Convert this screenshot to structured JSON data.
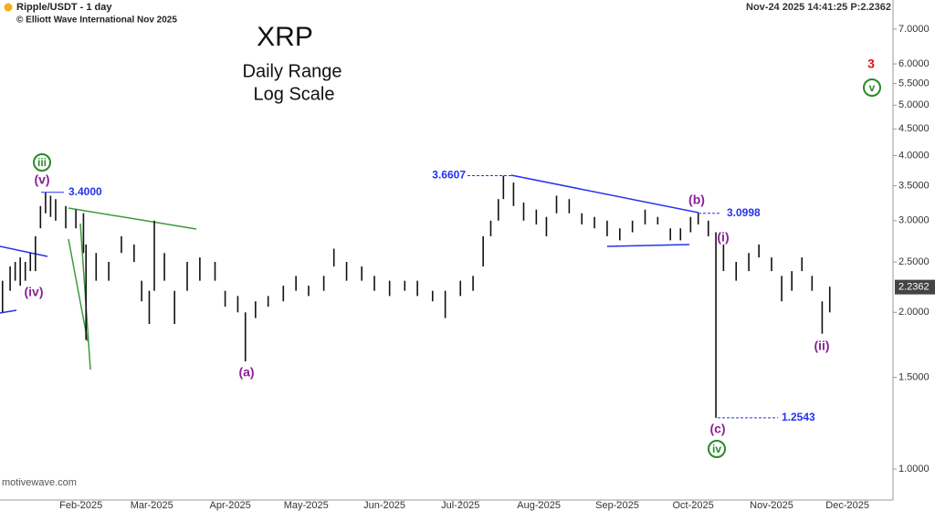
{
  "chart_data": {
    "type": "range_bar",
    "header": "Ripple/USDT - 1 day",
    "copyright": "© Elliott Wave International Nov 2025",
    "status": "Nov-24 2025  14:41:25  P:2.2362",
    "watermark": "motivewave.com",
    "title": "XRP",
    "subtitle": [
      "Daily Range",
      "Log Scale"
    ],
    "log_scale": true,
    "color": "#111111",
    "x": [
      "2025-01-01",
      "2025-01-04",
      "2025-01-06",
      "2025-01-08",
      "2025-01-10",
      "2025-01-12",
      "2025-01-14",
      "2025-01-16",
      "2025-01-18",
      "2025-01-20",
      "2025-01-22",
      "2025-01-26",
      "2025-01-30",
      "2025-02-02",
      "2025-02-03",
      "2025-02-07",
      "2025-02-12",
      "2025-02-17",
      "2025-02-22",
      "2025-02-25",
      "2025-02-28",
      "2025-03-02",
      "2025-03-06",
      "2025-03-10",
      "2025-03-15",
      "2025-03-20",
      "2025-03-26",
      "2025-03-30",
      "2025-04-04",
      "2025-04-07",
      "2025-04-11",
      "2025-04-16",
      "2025-04-22",
      "2025-04-27",
      "2025-05-02",
      "2025-05-08",
      "2025-05-12",
      "2025-05-17",
      "2025-05-23",
      "2025-05-28",
      "2025-06-03",
      "2025-06-09",
      "2025-06-14",
      "2025-06-20",
      "2025-06-25",
      "2025-07-01",
      "2025-07-06",
      "2025-07-10",
      "2025-07-13",
      "2025-07-16",
      "2025-07-18",
      "2025-07-22",
      "2025-07-26",
      "2025-07-31",
      "2025-08-04",
      "2025-08-08",
      "2025-08-13",
      "2025-08-18",
      "2025-08-23",
      "2025-08-28",
      "2025-09-02",
      "2025-09-07",
      "2025-09-12",
      "2025-09-17",
      "2025-09-22",
      "2025-09-26",
      "2025-09-30",
      "2025-10-03",
      "2025-10-07",
      "2025-10-10",
      "2025-10-13",
      "2025-10-18",
      "2025-10-23",
      "2025-10-27",
      "2025-11-01",
      "2025-11-05",
      "2025-11-09",
      "2025-11-13",
      "2025-11-17",
      "2025-11-21",
      "2025-11-24"
    ],
    "high": [
      2.3,
      2.45,
      2.5,
      2.55,
      2.5,
      2.6,
      2.8,
      3.2,
      3.4,
      3.35,
      3.3,
      3.2,
      3.15,
      3.1,
      2.7,
      2.6,
      2.5,
      2.8,
      2.7,
      2.3,
      2.2,
      3.0,
      2.6,
      2.2,
      2.5,
      2.55,
      2.5,
      2.2,
      2.15,
      2.0,
      2.1,
      2.15,
      2.25,
      2.35,
      2.25,
      2.35,
      2.65,
      2.5,
      2.45,
      2.35,
      2.3,
      2.3,
      2.3,
      2.2,
      2.2,
      2.3,
      2.35,
      2.8,
      3.0,
      3.3,
      3.6607,
      3.55,
      3.25,
      3.15,
      3.05,
      3.35,
      3.3,
      3.1,
      3.05,
      3.0,
      2.9,
      3.0,
      3.15,
      3.05,
      2.9,
      2.9,
      3.05,
      3.1,
      3.0,
      2.85,
      2.7,
      2.5,
      2.6,
      2.7,
      2.55,
      2.35,
      2.4,
      2.55,
      2.35,
      2.1,
      2.24
    ],
    "low": [
      2.0,
      2.2,
      2.3,
      2.25,
      2.3,
      2.4,
      2.4,
      2.9,
      3.1,
      3.05,
      3.0,
      2.9,
      2.9,
      2.6,
      1.77,
      2.3,
      2.3,
      2.6,
      2.5,
      2.1,
      1.9,
      2.2,
      2.3,
      1.9,
      2.2,
      2.3,
      2.3,
      2.05,
      2.0,
      1.61,
      1.95,
      2.05,
      2.1,
      2.2,
      2.15,
      2.2,
      2.45,
      2.3,
      2.3,
      2.2,
      2.15,
      2.2,
      2.15,
      2.1,
      1.95,
      2.15,
      2.2,
      2.45,
      2.8,
      3.0,
      3.3,
      3.2,
      3.0,
      2.95,
      2.8,
      3.1,
      3.1,
      2.95,
      2.9,
      2.8,
      2.75,
      2.85,
      2.95,
      2.95,
      2.75,
      2.75,
      2.85,
      2.95,
      2.8,
      1.2543,
      2.4,
      2.3,
      2.4,
      2.55,
      2.4,
      2.1,
      2.2,
      2.4,
      2.2,
      1.82,
      2.0
    ],
    "xlim": [
      "2024-12-31",
      "2025-12-19"
    ],
    "xticks": [
      {
        "value": "2025-02-01",
        "label": "Feb-2025"
      },
      {
        "value": "2025-03-01",
        "label": "Mar-2025"
      },
      {
        "value": "2025-04-01",
        "label": "Apr-2025"
      },
      {
        "value": "2025-05-01",
        "label": "May-2025"
      },
      {
        "value": "2025-06-01",
        "label": "Jun-2025"
      },
      {
        "value": "2025-07-01",
        "label": "Jul-2025"
      },
      {
        "value": "2025-08-01",
        "label": "Aug-2025"
      },
      {
        "value": "2025-09-01",
        "label": "Sep-2025"
      },
      {
        "value": "2025-10-01",
        "label": "Oct-2025"
      },
      {
        "value": "2025-11-01",
        "label": "Nov-2025"
      },
      {
        "value": "2025-12-01",
        "label": "Dec-2025"
      }
    ],
    "ylim": [
      0.872,
      7.96
    ],
    "yticks": [
      {
        "value": 1,
        "label": "1.0000"
      },
      {
        "value": 1.5,
        "label": "1.5000"
      },
      {
        "value": 2,
        "label": "2.0000"
      },
      {
        "value": 2.5,
        "label": "2.5000"
      },
      {
        "value": 3,
        "label": "3.0000"
      },
      {
        "value": 3.5,
        "label": "3.5000"
      },
      {
        "value": 4,
        "label": "4.0000"
      },
      {
        "value": 4.5,
        "label": "4.5000"
      },
      {
        "value": 5,
        "label": "5.0000"
      },
      {
        "value": 5.5,
        "label": "5.5000"
      },
      {
        "value": 6,
        "label": "6.0000"
      },
      {
        "value": 7,
        "label": "7.0000"
      }
    ],
    "last_price": {
      "value": 2.2362,
      "label": "2.2362"
    },
    "price_levels": [
      {
        "value": 3.4,
        "label": "3.4000"
      },
      {
        "value": 3.6607,
        "label": "3.6607"
      },
      {
        "value": 3.0998,
        "label": "3.0998"
      },
      {
        "value": 1.2543,
        "label": "1.2543"
      }
    ],
    "wave_labels": [
      "iii",
      "(v)",
      "(iv)",
      "(a)",
      "(b)",
      "(i)",
      "(c)",
      "iv",
      "(ii)",
      "v",
      "3"
    ]
  }
}
